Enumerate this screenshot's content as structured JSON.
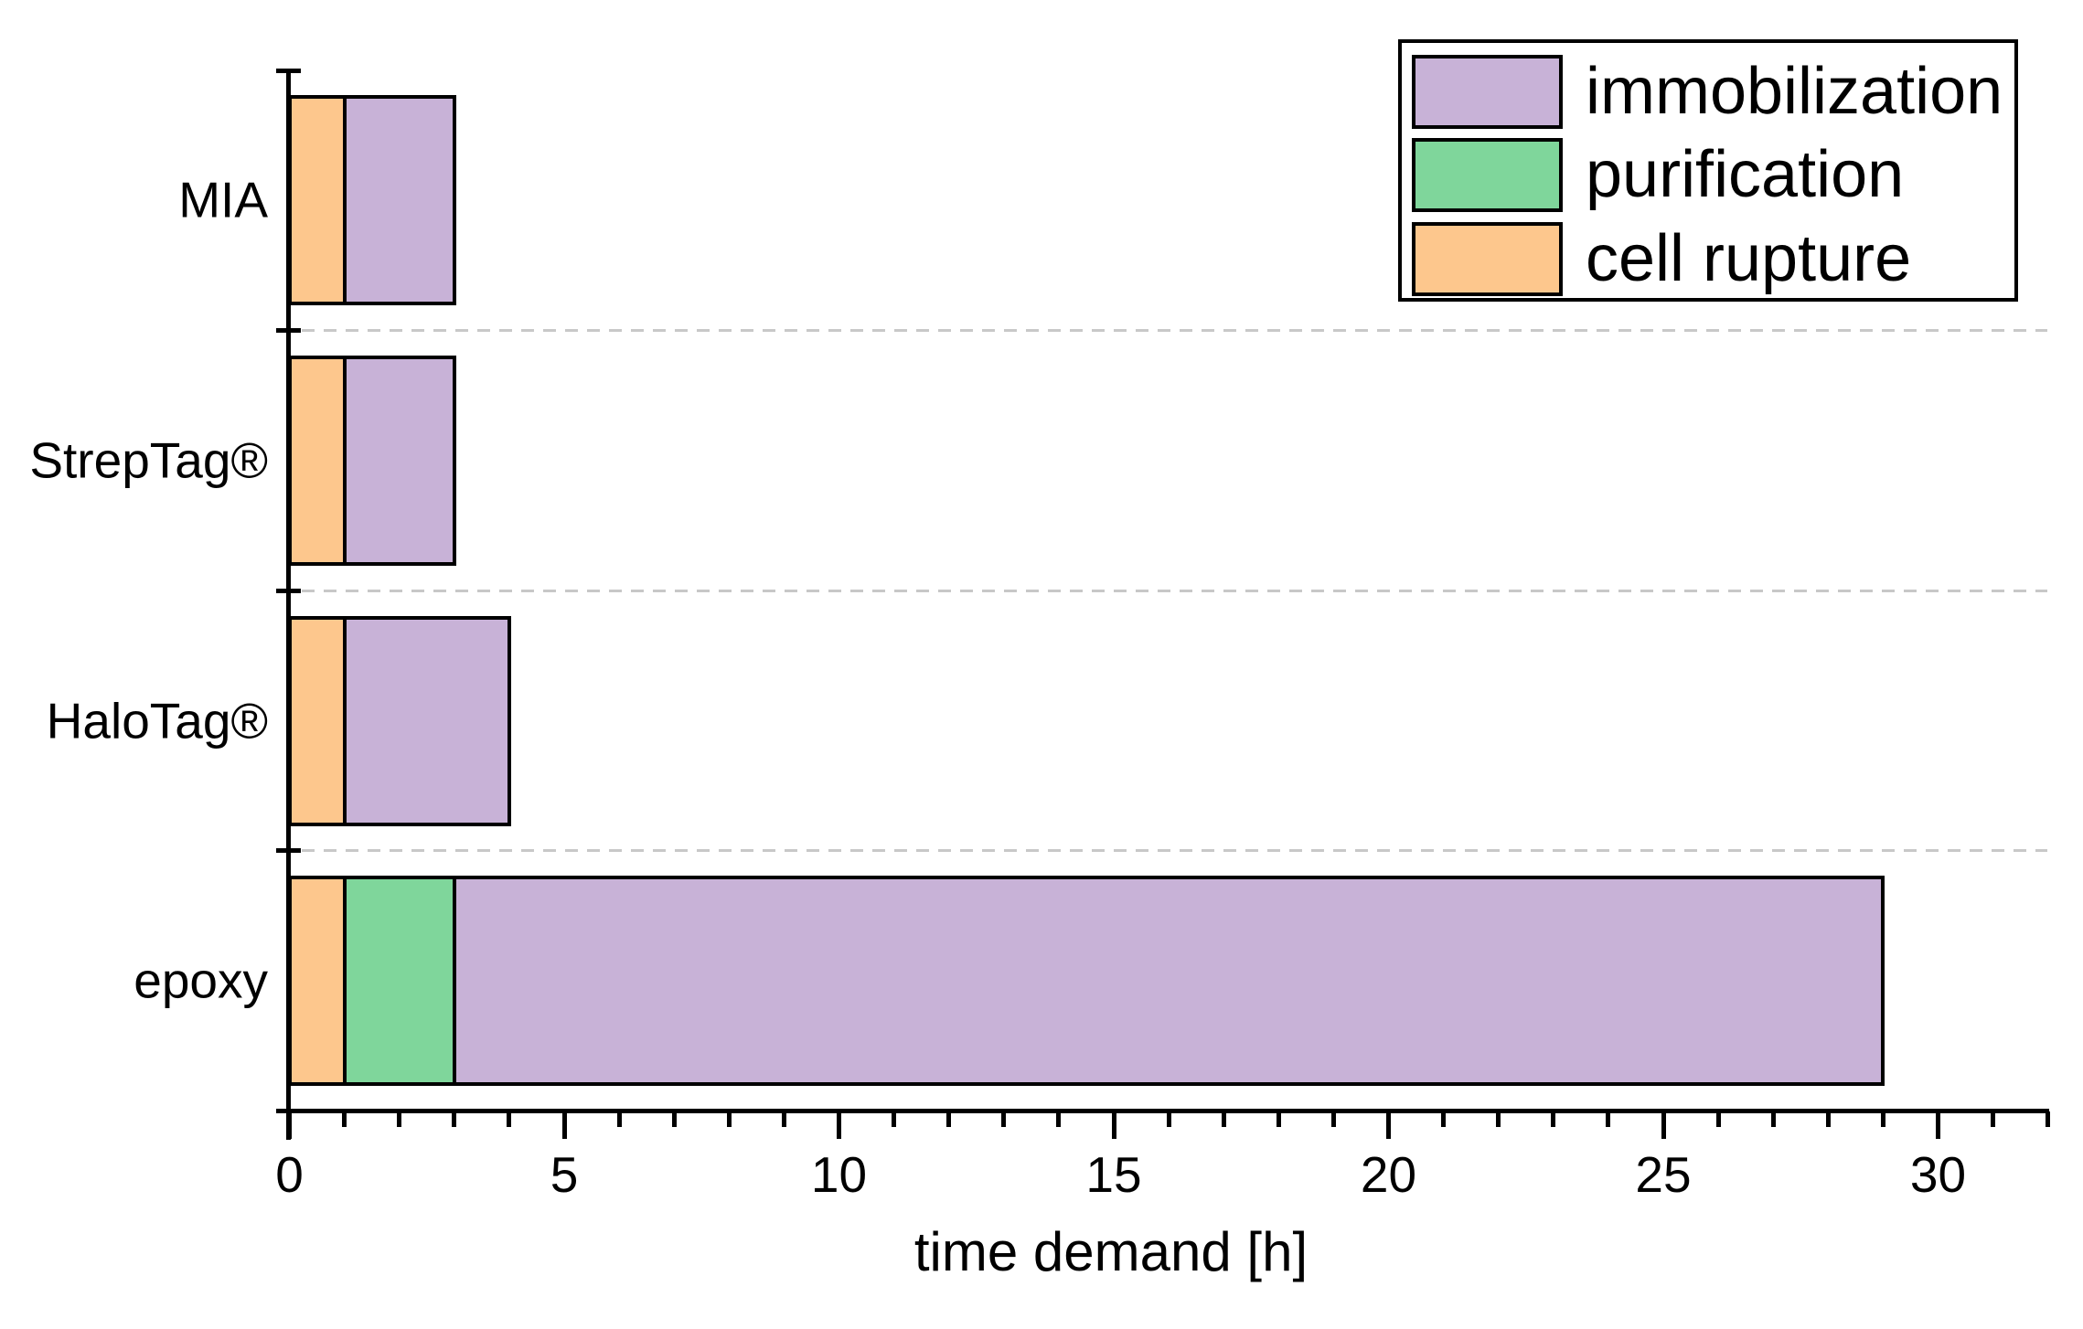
{
  "chart_data": {
    "type": "bar",
    "orientation": "horizontal",
    "stacked": true,
    "title": "",
    "xlabel": "time demand [h]",
    "categories": [
      "MIA",
      "StrepTag®",
      "HaloTag®",
      "epoxy"
    ],
    "series": [
      {
        "name": "cell rupture",
        "color": "#FDC78D",
        "values": [
          1,
          1,
          1,
          1
        ]
      },
      {
        "name": "purification",
        "color": "#7FD69B",
        "values": [
          0,
          0,
          0,
          2
        ]
      },
      {
        "name": "immobilization",
        "color": "#C8B2D7",
        "values": [
          2,
          2,
          3,
          26
        ]
      }
    ],
    "bar_totals": [
      3,
      3,
      4,
      29
    ],
    "xlim": [
      0,
      32
    ],
    "x_major_ticks": [
      0,
      5,
      10,
      15,
      20,
      25,
      30
    ],
    "x_tick_labels": [
      "0",
      "5",
      "10",
      "15",
      "20",
      "25",
      "30"
    ],
    "x_minor_tick_step": 1,
    "grid": "dashed horizontal separators between category rows",
    "legend": {
      "position": "top-right",
      "entries": [
        {
          "label": "immobilization",
          "color": "#C8B2D7"
        },
        {
          "label": "purification",
          "color": "#7FD69B"
        },
        {
          "label": "cell rupture",
          "color": "#FDC78D"
        }
      ]
    },
    "colors": {
      "bar_outline": "#000000",
      "axis": "#000000",
      "gridline": "#c8c8c8",
      "background": "#ffffff"
    }
  }
}
